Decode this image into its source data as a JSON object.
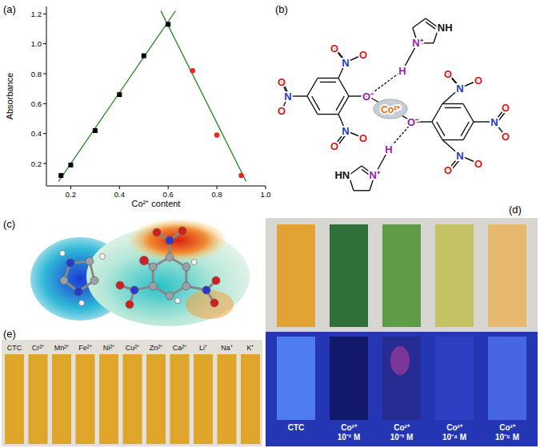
{
  "chart_data": {
    "type": "scatter",
    "x_label": "Co²⁺ content",
    "y_label": "Absorbance",
    "xlim": [
      0.1,
      1.0
    ],
    "ylim": [
      0.05,
      1.25
    ],
    "xticks": [
      0.2,
      0.4,
      0.6,
      0.8,
      {
        "value": 1.0,
        "label": "1.0"
      }
    ],
    "yticks": [
      0.2,
      0.4,
      0.6,
      0.8,
      {
        "value": 1.0,
        "label": "1.0"
      },
      1.2
    ],
    "grid": false,
    "series": [
      {
        "type": "scatter",
        "color": "#000000",
        "marker": "square",
        "x": [
          0.16,
          0.2,
          0.3,
          0.4,
          0.5,
          0.6
        ],
        "values": [
          0.12,
          0.19,
          0.42,
          0.66,
          0.92,
          1.13
        ]
      },
      {
        "type": "scatter",
        "color": "#e8281e",
        "marker": "circle",
        "x": [
          0.7,
          0.8,
          0.9
        ],
        "values": [
          0.82,
          0.39,
          0.12
        ]
      },
      {
        "type": "line",
        "color": "#2a8a2a",
        "line_style": "solid",
        "x": [
          0.15,
          0.63
        ],
        "values": [
          0.08,
          1.22
        ]
      },
      {
        "type": "line",
        "color": "#2a8a2a",
        "line_style": "solid",
        "x": [
          0.57,
          0.92
        ],
        "values": [
          1.22,
          0.08
        ]
      }
    ]
  },
  "panel_labels": [
    "(a)",
    "(b)",
    "(c)",
    "(d)",
    "(e)"
  ],
  "structure": {
    "metal": "Co²⁺",
    "phenolate_oxygen": "O⁻",
    "nitro_nitrogen": "N",
    "nitro_oxygen": "O",
    "imidazolium_nitrogen": "N⁺",
    "imidazole_nh": "NH",
    "imidazole_hn": "HN",
    "bridging_hydrogen": "H"
  },
  "test_strips": {
    "labels": [
      [
        "CTC"
      ],
      [
        "Co²⁺",
        "10⁻² M"
      ],
      [
        "Co²⁺",
        "10⁻³ M"
      ],
      [
        "Co²⁺",
        "10⁻⁴ M"
      ],
      [
        "Co²⁺",
        "10⁻⁵ M"
      ]
    ]
  },
  "selectivity_strips": {
    "labels": [
      "CTC",
      "Cr²⁺",
      "Mn²⁺",
      "Fe²⁺",
      "Ni²⁺",
      "Cu²⁺",
      "Zn²⁺",
      "Ca²⁺",
      "Li⁺",
      "Na⁺",
      "K⁺"
    ]
  }
}
